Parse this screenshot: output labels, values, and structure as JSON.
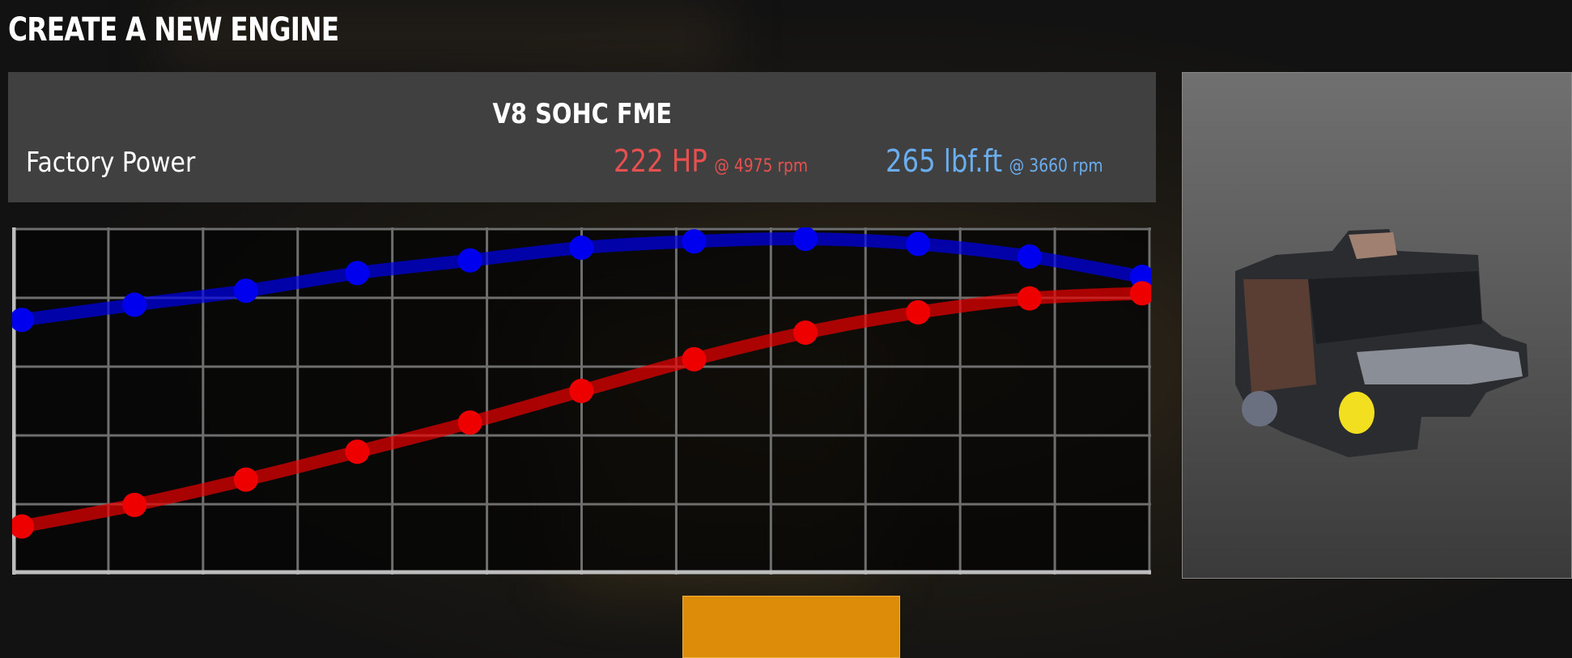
{
  "page": {
    "title": "CREATE A NEW ENGINE"
  },
  "engine": {
    "name": "V8 SOHC FME",
    "section_label": "Factory Power",
    "power": {
      "value": "222 HP",
      "at": "@ 4975 rpm",
      "color": "#e85050"
    },
    "torque": {
      "value": "265 lbf.ft",
      "at": "@ 3660 rpm",
      "color": "#6aaef0"
    }
  },
  "chart_data": {
    "type": "line",
    "title": "",
    "xlabel": "",
    "ylabel": "",
    "x": [
      600,
      1040,
      1475,
      1910,
      2350,
      2785,
      3225,
      3660,
      4100,
      4535,
      4975
    ],
    "xlim": [
      600,
      4975
    ],
    "ylim": [
      0,
      274
    ],
    "grid": true,
    "grid_columns": 12,
    "grid_rows": 5,
    "series": [
      {
        "key": "torque",
        "color": "#0000ee",
        "values": [
          201,
          213,
          224,
          238,
          248,
          258,
          263,
          265,
          261,
          251,
          235
        ]
      },
      {
        "key": "power",
        "color": "#ee0000",
        "values": [
          38,
          55,
          75,
          97,
          120,
          145,
          170,
          191,
          207,
          218,
          222
        ]
      }
    ]
  },
  "preview": {
    "icon": "engine-3d-render"
  },
  "tile": {
    "color": "#dd8c0a"
  }
}
